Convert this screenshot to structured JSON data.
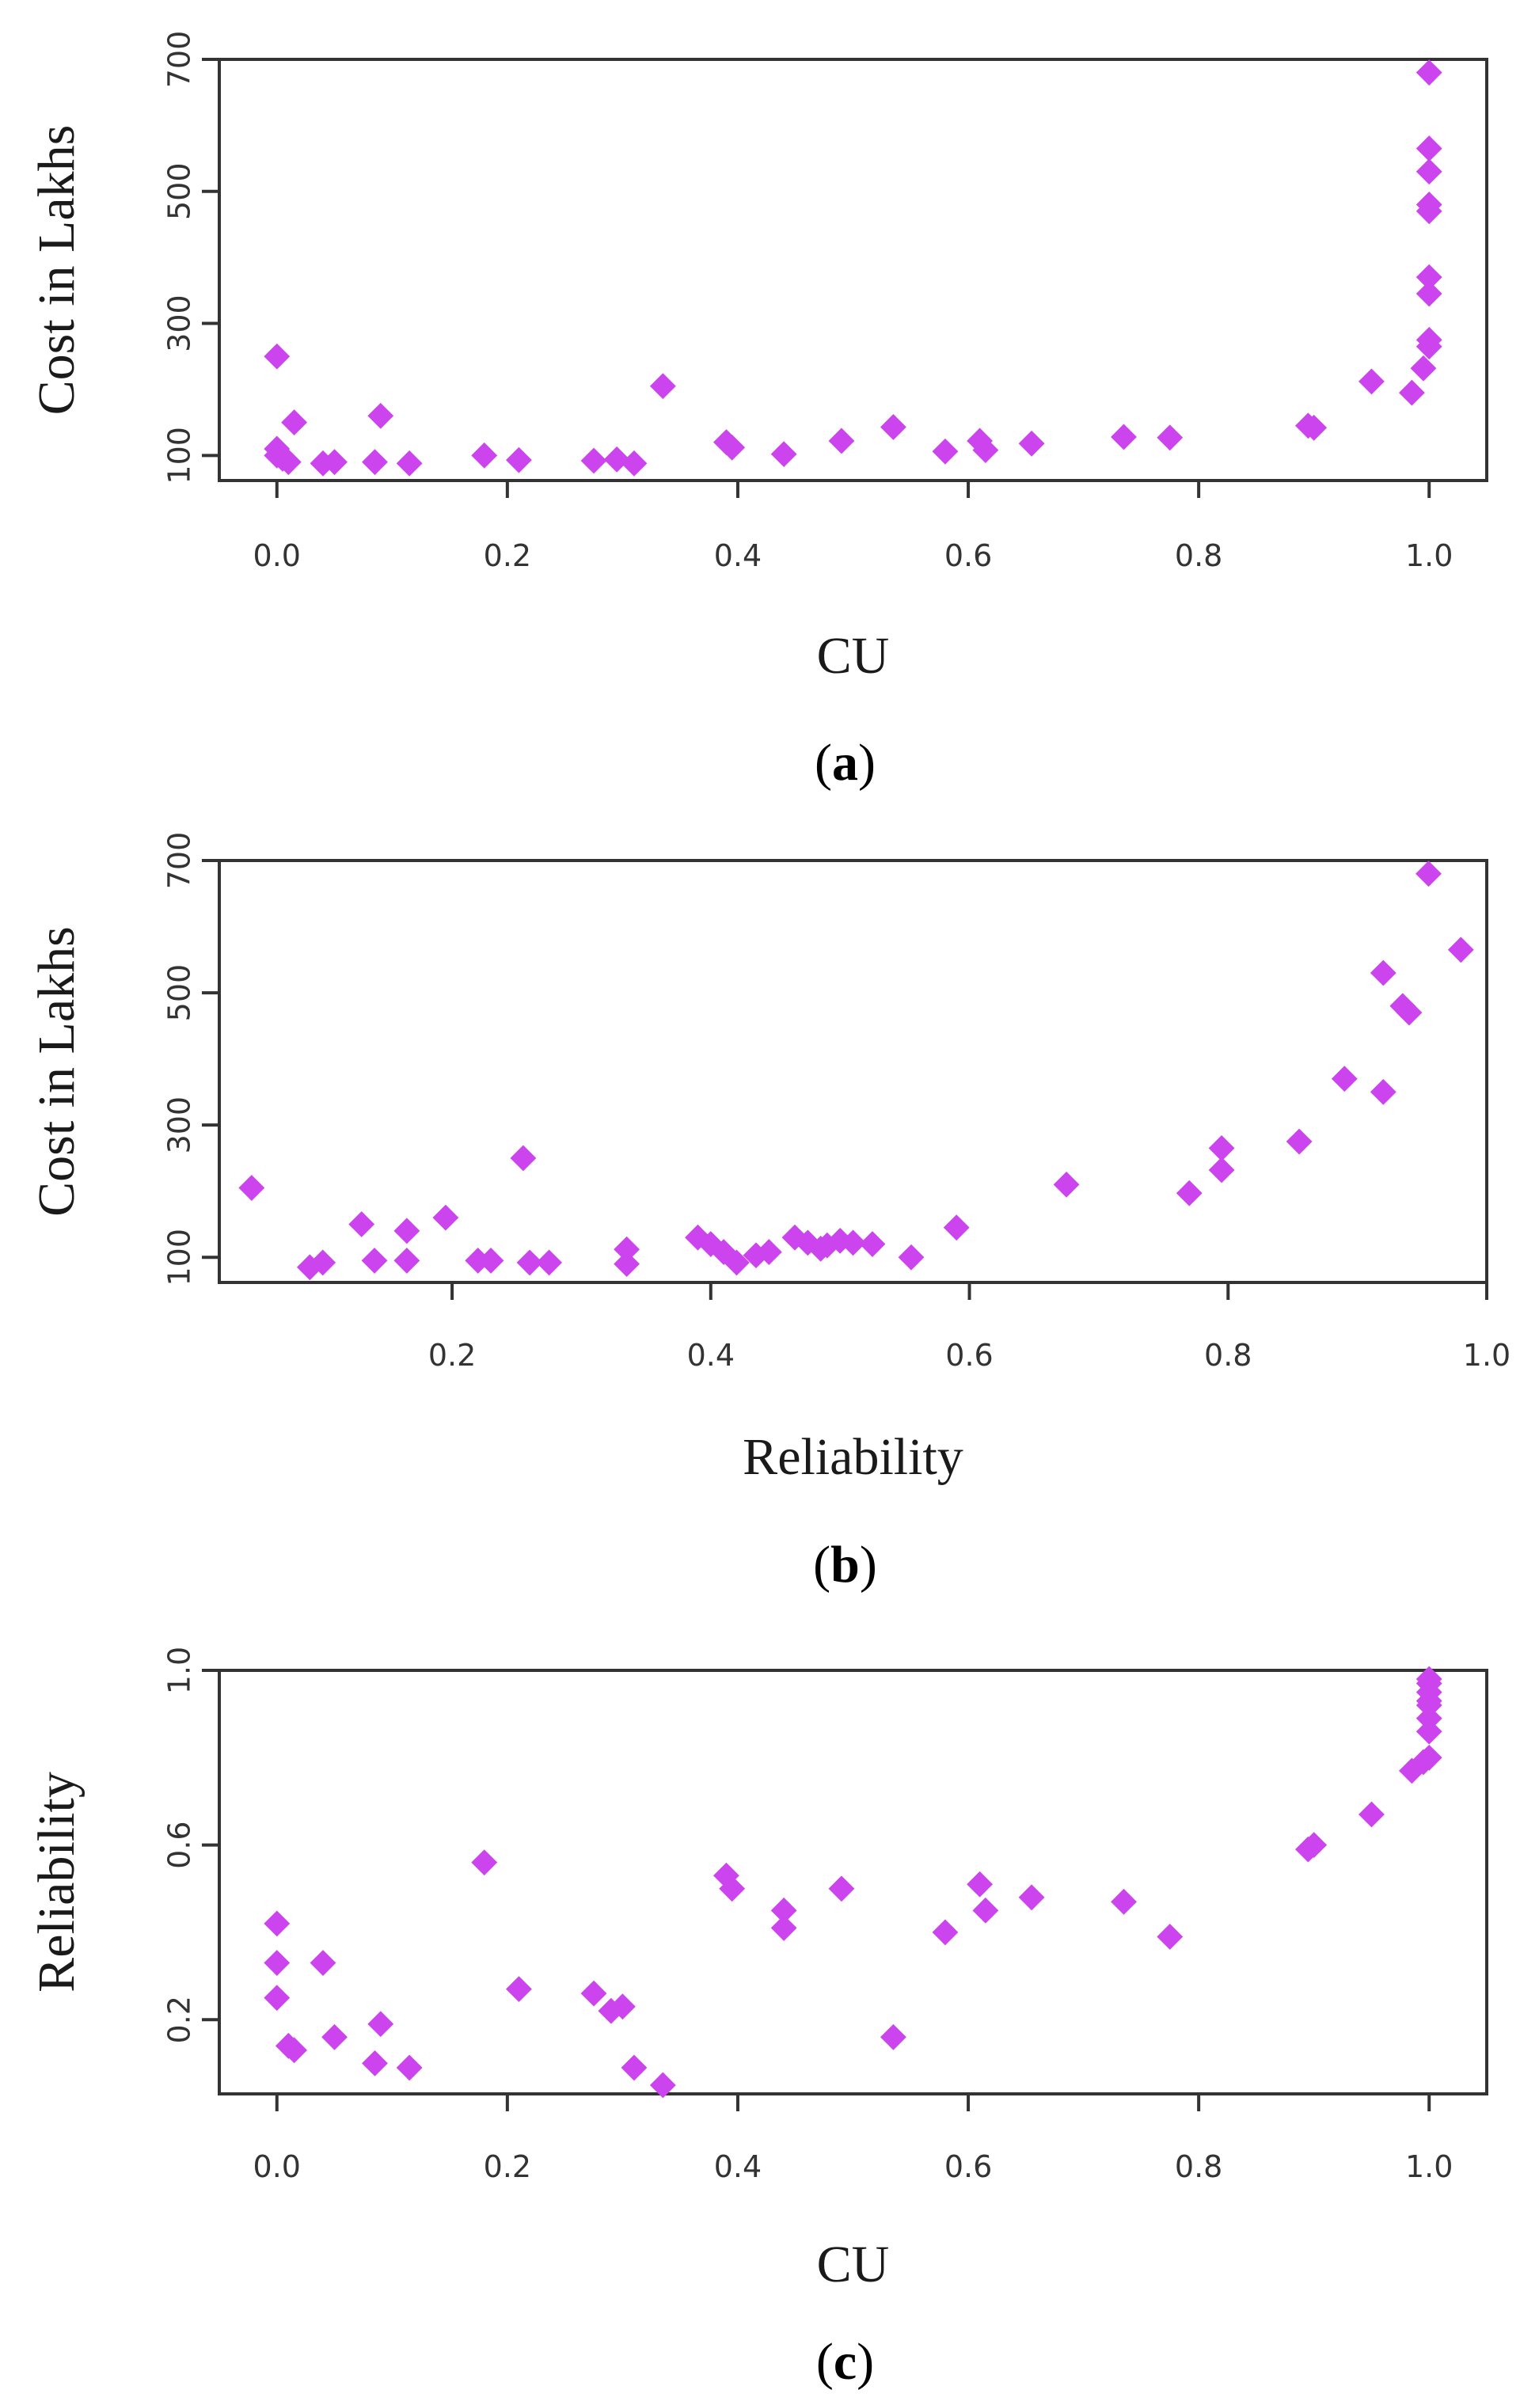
{
  "chart_data": [
    {
      "type": "scatter",
      "panel": "a",
      "caption": "(a)",
      "xlabel": "CU",
      "ylabel": "Cost in Lakhs",
      "xlim": [
        -0.05,
        1.05
      ],
      "ylim": [
        62,
        700
      ],
      "xticks": [
        0.0,
        0.2,
        0.4,
        0.6,
        0.8,
        1.0
      ],
      "xtick_labels": [
        "0.0",
        "0.2",
        "0.4",
        "0.6",
        "0.8",
        "1.0"
      ],
      "yticks": [
        100,
        300,
        500,
        700
      ],
      "ytick_labels": [
        "100",
        "300",
        "500",
        "700"
      ],
      "marker_color": "#cc44ee",
      "points": [
        [
          0.0,
          250
        ],
        [
          0.0,
          110
        ],
        [
          0.0,
          100
        ],
        [
          0.005,
          95
        ],
        [
          0.01,
          90
        ],
        [
          0.015,
          150
        ],
        [
          0.04,
          88
        ],
        [
          0.05,
          90
        ],
        [
          0.085,
          90
        ],
        [
          0.09,
          160
        ],
        [
          0.115,
          88
        ],
        [
          0.18,
          100
        ],
        [
          0.21,
          93
        ],
        [
          0.275,
          92
        ],
        [
          0.295,
          94
        ],
        [
          0.31,
          88
        ],
        [
          0.335,
          205
        ],
        [
          0.39,
          120
        ],
        [
          0.395,
          112
        ],
        [
          0.44,
          102
        ],
        [
          0.49,
          122
        ],
        [
          0.535,
          143
        ],
        [
          0.58,
          106
        ],
        [
          0.61,
          122
        ],
        [
          0.615,
          108
        ],
        [
          0.655,
          118
        ],
        [
          0.735,
          128
        ],
        [
          0.775,
          127
        ],
        [
          0.895,
          145
        ],
        [
          0.9,
          142
        ],
        [
          0.95,
          212
        ],
        [
          0.985,
          195
        ],
        [
          0.995,
          232
        ],
        [
          1.0,
          265
        ],
        [
          1.0,
          275
        ],
        [
          1.0,
          345
        ],
        [
          1.0,
          370
        ],
        [
          1.0,
          470
        ],
        [
          1.0,
          480
        ],
        [
          1.0,
          530
        ],
        [
          1.0,
          565
        ],
        [
          1.0,
          680
        ]
      ]
    },
    {
      "type": "scatter",
      "panel": "b",
      "caption": "(b)",
      "xlabel": "Reliability",
      "ylabel": "Cost in Lakhs",
      "xlim": [
        0.02,
        1.0
      ],
      "ylim": [
        62,
        700
      ],
      "xticks": [
        0.2,
        0.4,
        0.6,
        0.8,
        1.0
      ],
      "xtick_labels": [
        "0.2",
        "0.4",
        "0.6",
        "0.8",
        "1.0"
      ],
      "yticks": [
        100,
        300,
        500,
        700
      ],
      "ytick_labels": [
        "100",
        "300",
        "500",
        "700"
      ],
      "marker_color": "#cc44ee",
      "points": [
        [
          0.045,
          205
        ],
        [
          0.09,
          85
        ],
        [
          0.1,
          92
        ],
        [
          0.13,
          150
        ],
        [
          0.14,
          95
        ],
        [
          0.165,
          95
        ],
        [
          0.165,
          140
        ],
        [
          0.195,
          160
        ],
        [
          0.22,
          95
        ],
        [
          0.23,
          95
        ],
        [
          0.255,
          250
        ],
        [
          0.26,
          92
        ],
        [
          0.275,
          92
        ],
        [
          0.335,
          112
        ],
        [
          0.335,
          90
        ],
        [
          0.39,
          130
        ],
        [
          0.4,
          120
        ],
        [
          0.41,
          108
        ],
        [
          0.42,
          92
        ],
        [
          0.435,
          103
        ],
        [
          0.445,
          108
        ],
        [
          0.465,
          130
        ],
        [
          0.475,
          122
        ],
        [
          0.485,
          113
        ],
        [
          0.49,
          118
        ],
        [
          0.5,
          125
        ],
        [
          0.51,
          122
        ],
        [
          0.525,
          120
        ],
        [
          0.555,
          100
        ],
        [
          0.59,
          145
        ],
        [
          0.675,
          210
        ],
        [
          0.77,
          197
        ],
        [
          0.795,
          265
        ],
        [
          0.795,
          232
        ],
        [
          0.855,
          275
        ],
        [
          0.89,
          370
        ],
        [
          0.92,
          350
        ],
        [
          0.92,
          530
        ],
        [
          0.935,
          480
        ],
        [
          0.94,
          470
        ],
        [
          0.955,
          680
        ],
        [
          0.98,
          565
        ]
      ]
    },
    {
      "type": "scatter",
      "panel": "c",
      "caption": "(c)",
      "xlabel": "CU",
      "ylabel": "Reliability",
      "xlim": [
        -0.05,
        1.05
      ],
      "ylim": [
        0.03,
        1.0
      ],
      "xticks": [
        0.0,
        0.2,
        0.4,
        0.6,
        0.8,
        1.0
      ],
      "xtick_labels": [
        "0.0",
        "0.2",
        "0.4",
        "0.6",
        "0.8",
        "1.0"
      ],
      "yticks": [
        0.2,
        0.6,
        1.0
      ],
      "ytick_labels": [
        "0.2",
        "0.6",
        "1.0"
      ],
      "marker_color": "#cc44ee",
      "points": [
        [
          0.0,
          0.42
        ],
        [
          0.0,
          0.33
        ],
        [
          0.0,
          0.25
        ],
        [
          0.01,
          0.14
        ],
        [
          0.015,
          0.13
        ],
        [
          0.04,
          0.33
        ],
        [
          0.05,
          0.16
        ],
        [
          0.085,
          0.1
        ],
        [
          0.09,
          0.19
        ],
        [
          0.115,
          0.09
        ],
        [
          0.18,
          0.56
        ],
        [
          0.21,
          0.27
        ],
        [
          0.275,
          0.26
        ],
        [
          0.29,
          0.22
        ],
        [
          0.3,
          0.23
        ],
        [
          0.31,
          0.09
        ],
        [
          0.335,
          0.05
        ],
        [
          0.39,
          0.53
        ],
        [
          0.395,
          0.5
        ],
        [
          0.44,
          0.45
        ],
        [
          0.44,
          0.41
        ],
        [
          0.49,
          0.5
        ],
        [
          0.535,
          0.16
        ],
        [
          0.58,
          0.4
        ],
        [
          0.61,
          0.51
        ],
        [
          0.615,
          0.45
        ],
        [
          0.655,
          0.48
        ],
        [
          0.735,
          0.47
        ],
        [
          0.775,
          0.39
        ],
        [
          0.895,
          0.59
        ],
        [
          0.9,
          0.6
        ],
        [
          0.95,
          0.67
        ],
        [
          0.985,
          0.77
        ],
        [
          0.995,
          0.79
        ],
        [
          1.0,
          0.8
        ],
        [
          1.0,
          0.86
        ],
        [
          1.0,
          0.89
        ],
        [
          1.0,
          0.92
        ],
        [
          1.0,
          0.93
        ],
        [
          1.0,
          0.95
        ],
        [
          1.0,
          0.97
        ],
        [
          1.0,
          0.98
        ]
      ]
    }
  ]
}
